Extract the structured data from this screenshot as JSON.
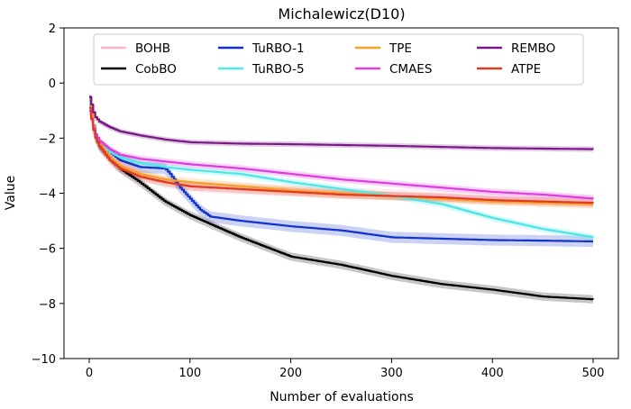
{
  "chart_data": {
    "type": "line",
    "title": "Michalewicz(D10)",
    "xlabel": "Number of evaluations",
    "ylabel": "Value",
    "xlim": [
      -25,
      525
    ],
    "ylim": [
      -10,
      2
    ],
    "xticks": [
      0,
      100,
      200,
      300,
      400,
      500
    ],
    "yticks": [
      2,
      0,
      -2,
      -4,
      -6,
      -8,
      -10
    ],
    "xtick_labels": [
      "0",
      "100",
      "200",
      "300",
      "400",
      "500"
    ],
    "ytick_labels": [
      "2",
      "0",
      "−2",
      "−4",
      "−6",
      "−8",
      "−10"
    ],
    "legend_position": "top",
    "series": [
      {
        "name": "BOHB",
        "color": "#f4b6c8",
        "x": [
          0,
          5,
          10,
          20,
          30,
          50,
          75,
          100,
          150,
          200,
          250,
          300,
          350,
          400,
          450,
          500
        ],
        "y": [
          -0.9,
          -1.9,
          -2.3,
          -2.6,
          -2.9,
          -3.3,
          -3.6,
          -3.75,
          -3.85,
          -3.9,
          -4.0,
          -4.05,
          -4.1,
          -4.15,
          -4.2,
          -4.25
        ],
        "band": 0.2
      },
      {
        "name": "CobBO",
        "color": "#000000",
        "x": [
          0,
          5,
          10,
          20,
          30,
          50,
          75,
          100,
          150,
          200,
          250,
          300,
          350,
          400,
          450,
          500
        ],
        "y": [
          -0.6,
          -1.9,
          -2.3,
          -2.7,
          -3.1,
          -3.6,
          -4.3,
          -4.8,
          -5.6,
          -6.3,
          -6.6,
          -7.0,
          -7.3,
          -7.5,
          -7.75,
          -7.85
        ],
        "band": 0.15
      },
      {
        "name": "TuRBO-1",
        "color": "#1434c8",
        "x": [
          0,
          5,
          10,
          20,
          30,
          50,
          75,
          80,
          90,
          100,
          110,
          120,
          150,
          200,
          250,
          300,
          350,
          400,
          450,
          500
        ],
        "y": [
          -0.5,
          -1.8,
          -2.2,
          -2.5,
          -2.8,
          -3.05,
          -3.1,
          -3.3,
          -3.8,
          -4.2,
          -4.6,
          -4.85,
          -5.0,
          -5.2,
          -5.35,
          -5.6,
          -5.65,
          -5.7,
          -5.72,
          -5.75
        ],
        "band": 0.2
      },
      {
        "name": "TuRBO-5",
        "color": "#4fe6e6",
        "x": [
          0,
          5,
          10,
          20,
          30,
          50,
          75,
          100,
          150,
          200,
          250,
          300,
          350,
          400,
          450,
          500
        ],
        "y": [
          -0.7,
          -1.8,
          -2.2,
          -2.5,
          -2.7,
          -2.9,
          -3.05,
          -3.15,
          -3.3,
          -3.6,
          -3.85,
          -4.1,
          -4.4,
          -4.9,
          -5.3,
          -5.6
        ],
        "band": 0.12
      },
      {
        "name": "TPE",
        "color": "#f5a029",
        "x": [
          0,
          5,
          10,
          20,
          30,
          50,
          75,
          100,
          150,
          200,
          250,
          300,
          350,
          400,
          450,
          500
        ],
        "y": [
          -0.6,
          -1.8,
          -2.2,
          -2.7,
          -3.0,
          -3.3,
          -3.5,
          -3.6,
          -3.75,
          -3.9,
          -4.0,
          -4.1,
          -4.2,
          -4.3,
          -4.35,
          -4.4
        ],
        "band": 0.15
      },
      {
        "name": "CMAES",
        "color": "#de3ede",
        "x": [
          0,
          5,
          10,
          20,
          30,
          50,
          75,
          100,
          150,
          200,
          250,
          300,
          350,
          400,
          450,
          500
        ],
        "y": [
          -1.0,
          -1.8,
          -2.1,
          -2.4,
          -2.6,
          -2.75,
          -2.85,
          -2.95,
          -3.1,
          -3.3,
          -3.5,
          -3.65,
          -3.8,
          -3.95,
          -4.05,
          -4.2
        ],
        "band": 0.12
      },
      {
        "name": "REMBO",
        "color": "#7a1a86",
        "x": [
          0,
          5,
          10,
          20,
          30,
          50,
          75,
          100,
          150,
          200,
          250,
          300,
          350,
          400,
          450,
          500
        ],
        "y": [
          -0.5,
          -1.2,
          -1.4,
          -1.6,
          -1.75,
          -1.9,
          -2.05,
          -2.15,
          -2.2,
          -2.22,
          -2.25,
          -2.28,
          -2.32,
          -2.36,
          -2.38,
          -2.4
        ],
        "band": 0.1
      },
      {
        "name": "ATPE",
        "color": "#e03a22",
        "x": [
          0,
          5,
          10,
          20,
          30,
          50,
          75,
          100,
          150,
          200,
          250,
          300,
          350,
          400,
          450,
          500
        ],
        "y": [
          -0.9,
          -1.9,
          -2.3,
          -2.8,
          -3.1,
          -3.4,
          -3.6,
          -3.75,
          -3.85,
          -3.95,
          -4.05,
          -4.1,
          -4.15,
          -4.25,
          -4.3,
          -4.35
        ],
        "band": 0.15
      }
    ]
  }
}
